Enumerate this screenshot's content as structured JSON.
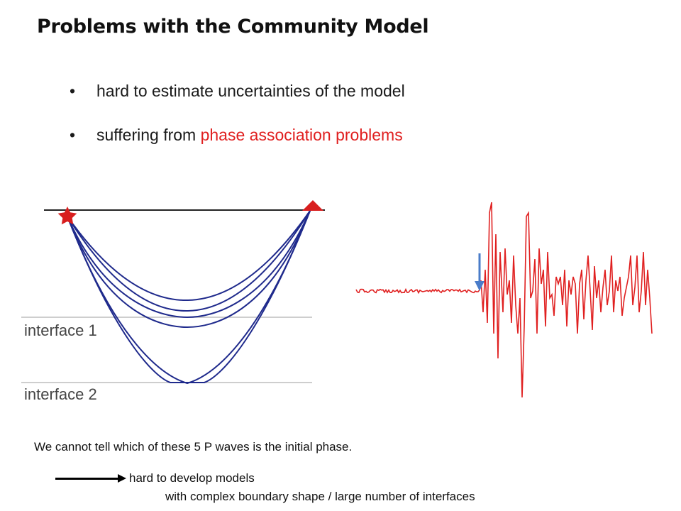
{
  "slide": {
    "title": "Problems with the Community Model",
    "bullets": [
      {
        "text": "hard to estimate uncertainties of the model"
      },
      {
        "prefix": "suffering from ",
        "highlight": "phase association problems"
      }
    ],
    "bullet_glyph": "•",
    "highlight_color": "#e02020"
  },
  "figure": {
    "interface_labels": [
      "interface 1",
      "interface 2"
    ],
    "ray_color": "#1f2a8c",
    "source_icon": "star-icon",
    "receiver_icon": "triangle-icon",
    "waveform_color": "#e02020",
    "pick_arrow_color": "#4a7cc9"
  },
  "caption": "We cannot tell which of these 5 P waves is the initial phase.",
  "conclusion": {
    "line1": "hard to develop models",
    "line2": "with complex boundary shape / large number of interfaces"
  }
}
